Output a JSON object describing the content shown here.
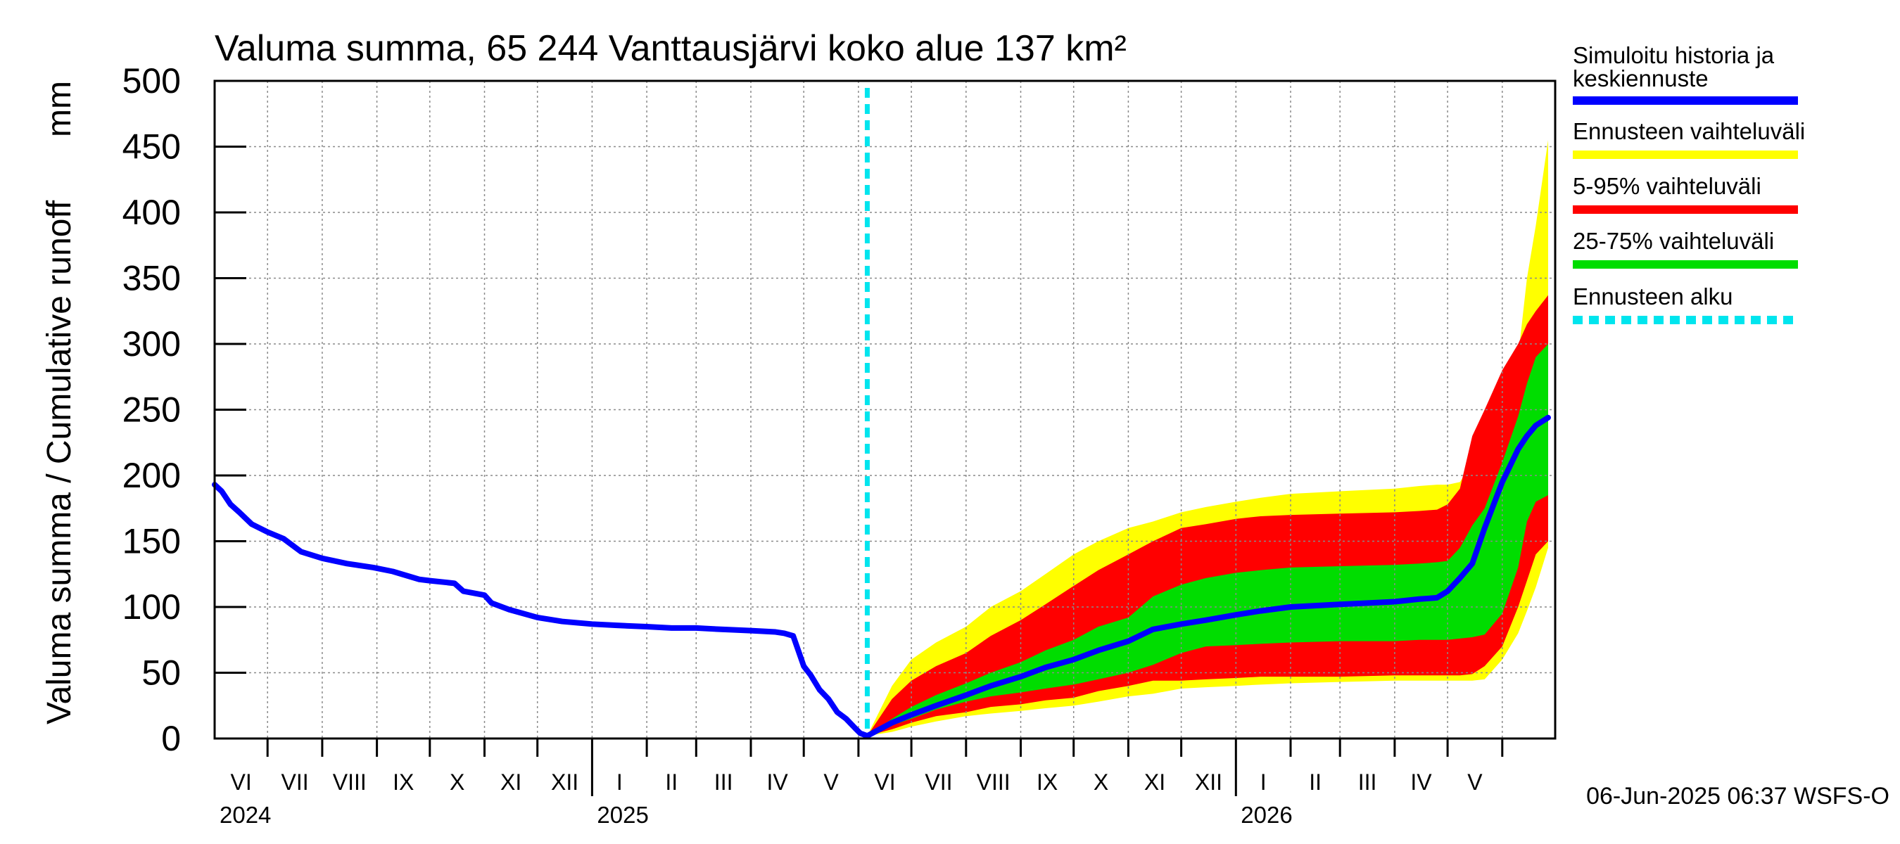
{
  "chart_data": {
    "type": "area",
    "title": "Valuma summa, 65 244 Vanttausjärvi koko alue 137 km²",
    "ylabel": "Valuma summa / Cumulative runoff",
    "yunit": "mm",
    "ylim": [
      0,
      500
    ],
    "yticks": [
      "0",
      "50",
      "100",
      "150",
      "200",
      "250",
      "300",
      "350",
      "400",
      "450",
      "500"
    ],
    "xlim": [
      "2024-06-01",
      "2026-06-30"
    ],
    "month_labels": [
      "VI",
      "VII",
      "VIII",
      "IX",
      "X",
      "XI",
      "XII",
      "I",
      "II",
      "III",
      "IV",
      "V",
      "VI",
      "VII",
      "VIII",
      "IX",
      "X",
      "XI",
      "XII",
      "I",
      "II",
      "III",
      "IV",
      "V"
    ],
    "year_labels": [
      {
        "label": "2024",
        "date": "2024-06-01"
      },
      {
        "label": "2025",
        "date": "2025-01-01"
      },
      {
        "label": "2026",
        "date": "2026-01-01"
      }
    ],
    "forecast_start": "2025-06-06",
    "grid": true,
    "legend_position": "right",
    "legend": [
      {
        "label": "Simuloitu historia ja keskiennuste",
        "color": "#0000ff",
        "style": "solid"
      },
      {
        "label": "Ennusteen vaihteluväli",
        "color": "#ffff00",
        "style": "solid"
      },
      {
        "label": "5-95% vaihteluväli",
        "color": "#ff0000",
        "style": "solid"
      },
      {
        "label": "25-75% vaihteluväli",
        "color": "#00dd00",
        "style": "solid"
      },
      {
        "label": "Ennusteen alku",
        "color": "#00e5ee",
        "style": "dashed"
      }
    ],
    "colors": {
      "history": "#0000ff",
      "range_full": "#ffff00",
      "range_5_95": "#ff0000",
      "range_25_75": "#00dd00",
      "forecast_start": "#00e5ee"
    },
    "history": {
      "x": [
        "2024-06-01",
        "2024-06-05",
        "2024-06-10",
        "2024-06-15",
        "2024-06-22",
        "2024-07-01",
        "2024-07-10",
        "2024-07-20",
        "2024-08-01",
        "2024-08-15",
        "2024-08-30",
        "2024-09-10",
        "2024-09-25",
        "2024-10-01",
        "2024-10-15",
        "2024-10-20",
        "2024-11-01",
        "2024-11-05",
        "2024-11-15",
        "2024-12-01",
        "2024-12-15",
        "2025-01-01",
        "2025-01-15",
        "2025-02-01",
        "2025-02-15",
        "2025-03-01",
        "2025-03-15",
        "2025-04-01",
        "2025-04-15",
        "2025-04-20",
        "2025-04-25",
        "2025-05-01",
        "2025-05-05",
        "2025-05-10",
        "2025-05-15",
        "2025-05-20",
        "2025-05-25",
        "2025-05-30",
        "2025-06-02",
        "2025-06-06"
      ],
      "y": [
        193,
        188,
        178,
        172,
        163,
        157,
        152,
        142,
        137,
        133,
        130,
        127,
        121,
        120,
        118,
        112,
        109,
        103,
        98,
        92,
        89,
        87,
        86,
        85,
        84,
        84,
        83,
        82,
        81,
        80,
        78,
        55,
        48,
        37,
        30,
        20,
        15,
        8,
        4,
        2
      ]
    },
    "forecast": {
      "x": [
        "2025-06-06",
        "2025-06-20",
        "2025-07-01",
        "2025-07-15",
        "2025-08-01",
        "2025-08-15",
        "2025-09-01",
        "2025-09-15",
        "2025-10-01",
        "2025-10-15",
        "2025-11-01",
        "2025-11-15",
        "2025-12-01",
        "2025-12-15",
        "2026-01-01",
        "2026-01-15",
        "2026-02-01",
        "2026-03-01",
        "2026-04-01",
        "2026-04-15",
        "2026-04-25",
        "2026-05-01",
        "2026-05-08",
        "2026-05-15",
        "2026-05-22",
        "2026-06-01",
        "2026-06-10",
        "2026-06-15",
        "2026-06-20",
        "2026-06-27"
      ],
      "median": [
        2,
        12,
        18,
        25,
        33,
        40,
        47,
        54,
        60,
        67,
        74,
        83,
        87,
        90,
        94,
        97,
        100,
        102,
        104,
        106,
        107,
        112,
        122,
        133,
        160,
        195,
        220,
        230,
        238,
        244
      ],
      "range_min": [
        2,
        5,
        9,
        13,
        17,
        19,
        21,
        23,
        25,
        28,
        32,
        34,
        38,
        39,
        40,
        41,
        42,
        43,
        44,
        44,
        44,
        44,
        44,
        44,
        45,
        60,
        80,
        97,
        115,
        145
      ],
      "range_max": [
        2,
        40,
        60,
        73,
        85,
        100,
        112,
        125,
        140,
        150,
        160,
        165,
        172,
        176,
        180,
        183,
        186,
        188,
        190,
        192,
        193,
        193,
        195,
        210,
        240,
        260,
        290,
        350,
        390,
        455
      ],
      "p5": [
        2,
        7,
        12,
        17,
        20,
        24,
        26,
        29,
        31,
        36,
        40,
        44,
        44,
        45,
        46,
        47,
        47,
        47,
        48,
        48,
        48,
        48,
        48,
        49,
        55,
        70,
        100,
        120,
        140,
        150
      ],
      "p95": [
        2,
        30,
        44,
        55,
        65,
        78,
        90,
        102,
        116,
        128,
        140,
        150,
        160,
        163,
        167,
        169,
        170,
        171,
        172,
        173,
        174,
        178,
        190,
        230,
        250,
        280,
        300,
        315,
        325,
        337
      ],
      "p25": [
        2,
        10,
        15,
        22,
        28,
        32,
        35,
        38,
        41,
        45,
        50,
        56,
        65,
        70,
        71,
        72,
        73,
        74,
        74,
        75,
        75,
        75,
        76,
        77,
        79,
        95,
        130,
        165,
        180,
        185
      ],
      "p75": [
        2,
        15,
        24,
        33,
        42,
        50,
        58,
        67,
        75,
        85,
        92,
        108,
        117,
        122,
        126,
        128,
        130,
        131,
        132,
        133,
        134,
        135,
        145,
        162,
        175,
        210,
        245,
        270,
        290,
        300
      ]
    },
    "timestamp": "06-Jun-2025 06:37 WSFS-O"
  }
}
